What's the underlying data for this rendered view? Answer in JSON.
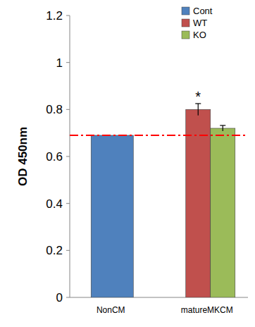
{
  "chart_data": {
    "type": "bar",
    "ylabel": "OD 450nm",
    "categories": [
      "NonCM",
      "matureMKCM"
    ],
    "series": [
      {
        "name": "Cont",
        "color": "#4f81bd",
        "values": [
          0.69,
          null
        ]
      },
      {
        "name": "WT",
        "color": "#c0504d",
        "values": [
          null,
          0.8
        ],
        "errors": [
          null,
          0.025
        ]
      },
      {
        "name": "KO",
        "color": "#9bbb59",
        "values": [
          null,
          0.72
        ],
        "errors": [
          null,
          0.012
        ]
      }
    ],
    "ylim": [
      0,
      1.2
    ],
    "yticks": [
      0,
      0.2,
      0.4,
      0.6,
      0.8,
      1,
      1.2
    ],
    "grid": false,
    "legend": "top-right",
    "reference_line": {
      "value": 0.69,
      "color": "#ff0000",
      "line_style": "dashdot"
    },
    "annotations": [
      {
        "text": "*",
        "category": "matureMKCM",
        "series": "WT"
      }
    ]
  }
}
